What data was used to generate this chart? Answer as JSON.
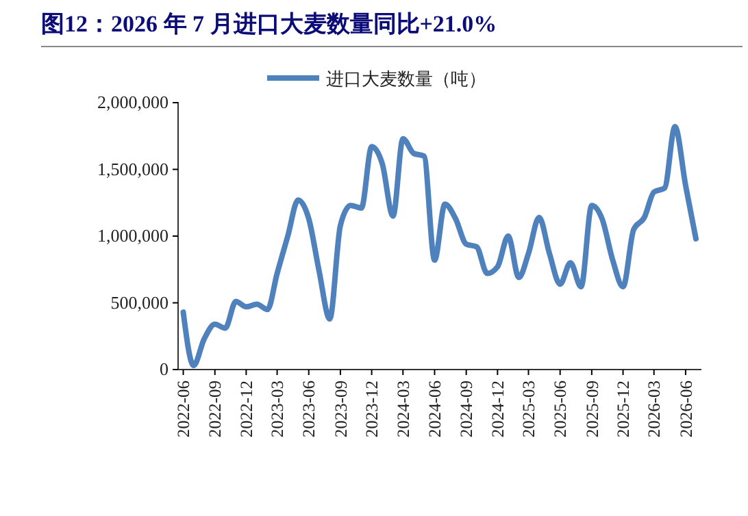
{
  "chart_data": {
    "type": "line",
    "title": "图12：2026 年 7 月进口大麦数量同比+21.0%",
    "x": [
      "2022-06",
      "2022-07",
      "2022-08",
      "2022-09",
      "2022-10",
      "2022-11",
      "2022-12",
      "2023-01",
      "2023-02",
      "2023-03",
      "2023-04",
      "2023-05",
      "2023-06",
      "2023-07",
      "2023-08",
      "2023-09",
      "2023-10",
      "2023-11",
      "2023-12",
      "2024-01",
      "2024-02",
      "2024-03",
      "2024-04",
      "2024-05",
      "2024-06",
      "2024-07",
      "2024-08",
      "2024-09",
      "2024-10",
      "2024-11",
      "2024-12",
      "2025-01",
      "2025-02",
      "2025-03",
      "2025-04",
      "2025-05",
      "2025-06",
      "2025-07",
      "2025-08",
      "2025-09",
      "2025-10",
      "2025-11",
      "2025-12",
      "2026-01",
      "2026-02",
      "2026-03",
      "2026-04",
      "2026-05",
      "2026-06",
      "2026-07"
    ],
    "series": [
      {
        "name": "进口大麦数量（吨）",
        "color": "#4f81bd",
        "values": [
          430000,
          30000,
          230000,
          340000,
          310000,
          510000,
          470000,
          490000,
          450000,
          720000,
          1000000,
          1270000,
          1130000,
          740000,
          380000,
          1080000,
          1230000,
          1210000,
          1670000,
          1540000,
          1150000,
          1730000,
          1620000,
          1600000,
          820000,
          1240000,
          1130000,
          940000,
          920000,
          720000,
          770000,
          1000000,
          690000,
          870000,
          1140000,
          870000,
          640000,
          800000,
          620000,
          1230000,
          1130000,
          820000,
          620000,
          1050000,
          1140000,
          1330000,
          1360000,
          1820000,
          1380000,
          980000
        ]
      }
    ],
    "xlim": [
      "2022-05-17",
      "2026-07-17"
    ],
    "xticks": [
      "2022-06",
      "2022-09",
      "2022-12",
      "2023-03",
      "2023-06",
      "2023-09",
      "2023-12",
      "2024-03",
      "2024-06",
      "2024-09",
      "2024-12",
      "2025-03",
      "2025-06",
      "2025-09",
      "2025-12",
      "2026-03",
      "2026-06"
    ],
    "ylim": [
      0,
      2000000
    ],
    "yticks": [
      0,
      {
        "value": 500000,
        "label": "500,000"
      },
      {
        "value": 1000000,
        "label": "1,000,000"
      },
      {
        "value": 1500000,
        "label": "1,500,000"
      },
      {
        "value": 2000000,
        "label": "2,000,000"
      }
    ],
    "legend": "top",
    "grid": false,
    "marker": "none",
    "line_style": "solid"
  }
}
